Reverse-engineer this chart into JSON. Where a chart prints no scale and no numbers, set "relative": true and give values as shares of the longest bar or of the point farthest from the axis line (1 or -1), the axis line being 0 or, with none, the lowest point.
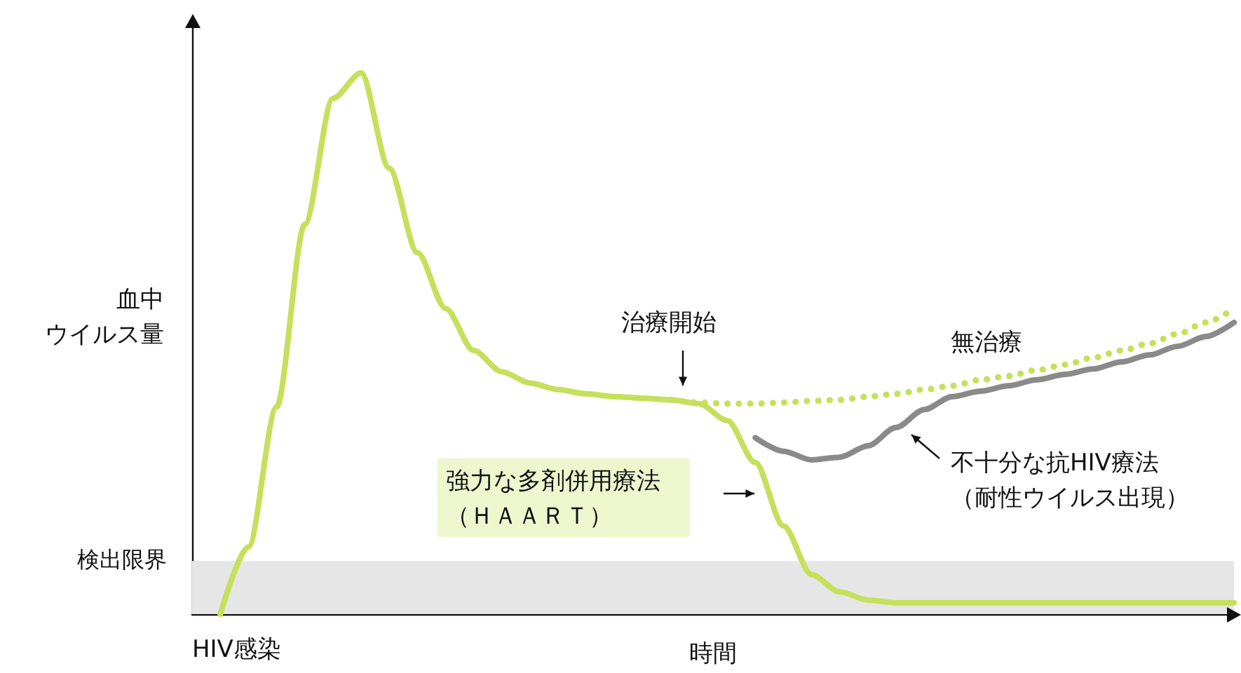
{
  "chart_data": {
    "type": "line",
    "relative": true,
    "xlabel": "時間",
    "ylabel": "血中ウイルス量",
    "legend": false,
    "marker": "none",
    "grid": false,
    "categories": [
      null,
      null,
      null,
      null,
      null,
      null,
      null,
      null,
      null,
      null,
      null,
      null,
      null,
      null,
      null,
      null,
      null,
      null,
      null,
      null,
      null,
      null,
      null,
      null,
      null,
      null,
      null,
      null,
      null,
      null,
      null,
      null,
      null,
      null,
      null,
      null,
      null,
      null
    ],
    "series": [
      {
        "name": "強力な多剤併用療法（ＨＡＡＲＴ）",
        "color": "#c5e05a",
        "line_style": "solid",
        "values": [
          null,
          0,
          0.124,
          0.383,
          0.72,
          0.953,
          1,
          0.824,
          0.668,
          0.565,
          0.487,
          0.448,
          0.427,
          0.415,
          0.407,
          0.402,
          0.399,
          0.396,
          0.389,
          0.358,
          0.28,
          0.163,
          0.073,
          0.041,
          0.026,
          0.021,
          0.021,
          0.021,
          0.021,
          0.021,
          0.021,
          0.021,
          0.021,
          0.021,
          0.021,
          0.021,
          0.021,
          0.021
        ]
      },
      {
        "name": "無治療",
        "color": "#c5e05a",
        "line_style": "dotted",
        "values": [
          null,
          null,
          null,
          null,
          null,
          null,
          null,
          null,
          null,
          null,
          null,
          null,
          null,
          null,
          null,
          null,
          null,
          0.396,
          0.391,
          0.389,
          0.389,
          0.391,
          0.394,
          0.396,
          0.402,
          0.407,
          0.415,
          0.422,
          0.433,
          0.44,
          0.451,
          0.461,
          0.474,
          0.487,
          0.5,
          0.518,
          0.539,
          0.565
        ]
      },
      {
        "name": "不十分な抗HIV療法（耐性ウイルス出現）",
        "color": "#8a8a8a",
        "line_style": "solid",
        "values": [
          null,
          null,
          null,
          null,
          null,
          null,
          null,
          null,
          null,
          null,
          null,
          null,
          null,
          null,
          null,
          null,
          null,
          null,
          null,
          null,
          0.326,
          0.301,
          0.285,
          0.29,
          0.311,
          0.345,
          0.378,
          0.402,
          0.412,
          0.422,
          0.433,
          0.443,
          0.453,
          0.466,
          0.479,
          0.495,
          0.513,
          0.539
        ]
      }
    ],
    "bands": [
      {
        "axis": "y",
        "from": 0,
        "to": 0.098,
        "label": "検出限界",
        "color": "#e6e6e6"
      }
    ],
    "annotations": [
      "治療開始",
      "HIV感染"
    ]
  }
}
